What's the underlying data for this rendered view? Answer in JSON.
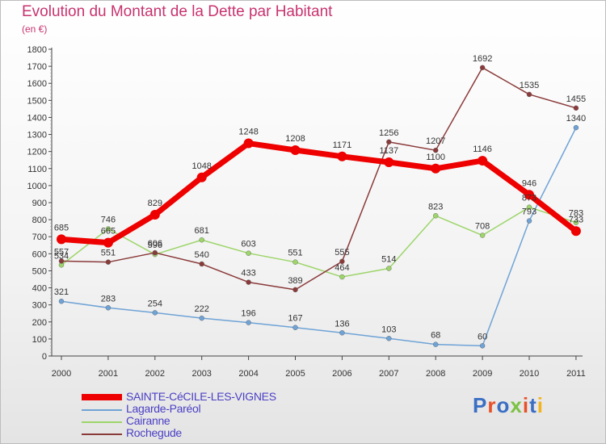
{
  "title": "Evolution du Montant de la Dette par Habitant",
  "unit": "(en €)",
  "logo": {
    "text": "Proxiti",
    "colors": [
      "#3a6fc4",
      "#e8502a",
      "#3a6fc4",
      "#7cc242",
      "#e8502a",
      "#3a6fc4",
      "#f2b31b"
    ]
  },
  "chart_data": {
    "type": "line",
    "x": [
      "2000",
      "2001",
      "2002",
      "2003",
      "2004",
      "2005",
      "2006",
      "2007",
      "2008",
      "2009",
      "2010",
      "2011"
    ],
    "ylim": [
      0,
      1800
    ],
    "yticks": [
      "0",
      "100",
      "200",
      "300",
      "400",
      "500",
      "600",
      "700",
      "800",
      "900",
      "1000",
      "1100",
      "1200",
      "1300",
      "1400",
      "1500",
      "1600",
      "1700",
      "1800"
    ],
    "grid": false,
    "legend_position": "bottom-left",
    "series": [
      {
        "name": "SAINTE-CéCILE-LES-VIGNES",
        "color": "#ee0000",
        "width": 7,
        "marker": 6,
        "values": [
          685,
          665,
          829,
          1048,
          1248,
          1208,
          1171,
          1137,
          1100,
          1146,
          946,
          733
        ],
        "labels": [
          "685",
          "665",
          "829",
          "1048",
          "1248",
          "1208",
          "1171",
          "1137",
          "1100",
          "1146",
          "946",
          "733"
        ]
      },
      {
        "name": "Lagarde-Paréol",
        "color": "#6fa3d6",
        "width": 1.5,
        "marker": 3,
        "values": [
          321,
          283,
          254,
          222,
          196,
          167,
          136,
          103,
          68,
          60,
          793,
          1340
        ],
        "labels": [
          "321",
          "283",
          "254",
          "222",
          "196",
          "167",
          "136",
          "103",
          "68",
          "60",
          "793",
          "1340"
        ]
      },
      {
        "name": "Cairanne",
        "color": "#9dd56a",
        "width": 1.5,
        "marker": 3,
        "values": [
          534,
          746,
          596,
          681,
          603,
          551,
          464,
          514,
          823,
          708,
          873,
          783
        ],
        "labels": [
          "534",
          "746",
          "596",
          "681",
          "603",
          "551",
          "464",
          "514",
          "823",
          "708",
          "873",
          "783"
        ]
      },
      {
        "name": "Rochegude",
        "color": "#8b3a3a",
        "width": 1.5,
        "marker": 3,
        "values": [
          557,
          551,
          606,
          540,
          433,
          389,
          555,
          1256,
          1207,
          1692,
          1535,
          1455
        ],
        "labels": [
          "557",
          "551",
          "606",
          "540",
          "433",
          "389",
          "555",
          "1256",
          "1207",
          "1692",
          "1535",
          "1455"
        ]
      }
    ]
  }
}
